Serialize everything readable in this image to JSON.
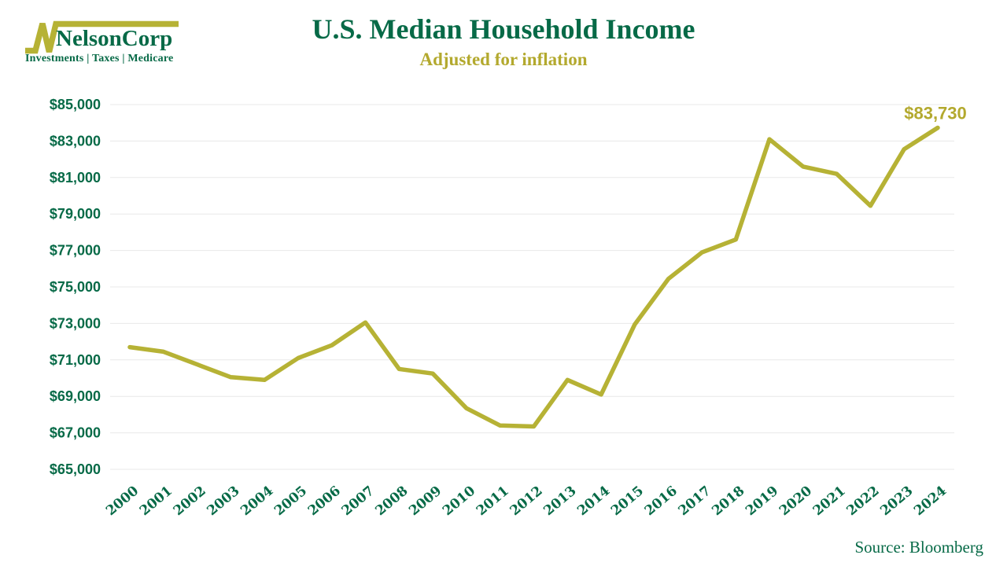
{
  "logo": {
    "brand": "NelsonCorp",
    "tagline": "Investments | Taxes | Medicare"
  },
  "header": {
    "title": "U.S. Median Household Income",
    "subtitle": "Adjusted for inflation"
  },
  "footer": {
    "source": "Source: Bloomberg"
  },
  "colors": {
    "green": "#076a47",
    "olive_line": "#b6b235",
    "olive_text": "#b3a92e",
    "grid": "#e8e8e8"
  },
  "chart_data": {
    "type": "line",
    "title": "U.S. Median Household Income",
    "subtitle": "Adjusted for inflation",
    "x": [
      2000,
      2001,
      2002,
      2003,
      2004,
      2005,
      2006,
      2007,
      2008,
      2009,
      2010,
      2011,
      2012,
      2013,
      2014,
      2015,
      2016,
      2017,
      2018,
      2019,
      2020,
      2021,
      2022,
      2023,
      2024
    ],
    "values": [
      71700,
      71450,
      70750,
      70050,
      69900,
      71100,
      71800,
      73050,
      70500,
      70250,
      68350,
      67400,
      67350,
      69900,
      69100,
      72950,
      75450,
      76900,
      77600,
      83100,
      81600,
      81200,
      79450,
      82550,
      83730
    ],
    "ylim": [
      65000,
      85000
    ],
    "yticks": [
      65000,
      67000,
      69000,
      71000,
      73000,
      75000,
      77000,
      79000,
      81000,
      83000,
      85000
    ],
    "ytick_labels": [
      "$65,000",
      "$67,000",
      "$69,000",
      "$71,000",
      "$73,000",
      "$75,000",
      "$77,000",
      "$79,000",
      "$81,000",
      "$83,000",
      "$85,000"
    ],
    "xtick_labels": [
      "2000",
      "2001",
      "2002",
      "2003",
      "2004",
      "2005",
      "2006",
      "2007",
      "2008",
      "2009",
      "2010",
      "2011",
      "2012",
      "2013",
      "2014",
      "2015",
      "2016",
      "2017",
      "2018",
      "2019",
      "2020",
      "2021",
      "2022",
      "2023",
      "2024"
    ],
    "grid": true,
    "legend": null,
    "annotation": {
      "text": "$83,730",
      "x": 2024
    }
  }
}
